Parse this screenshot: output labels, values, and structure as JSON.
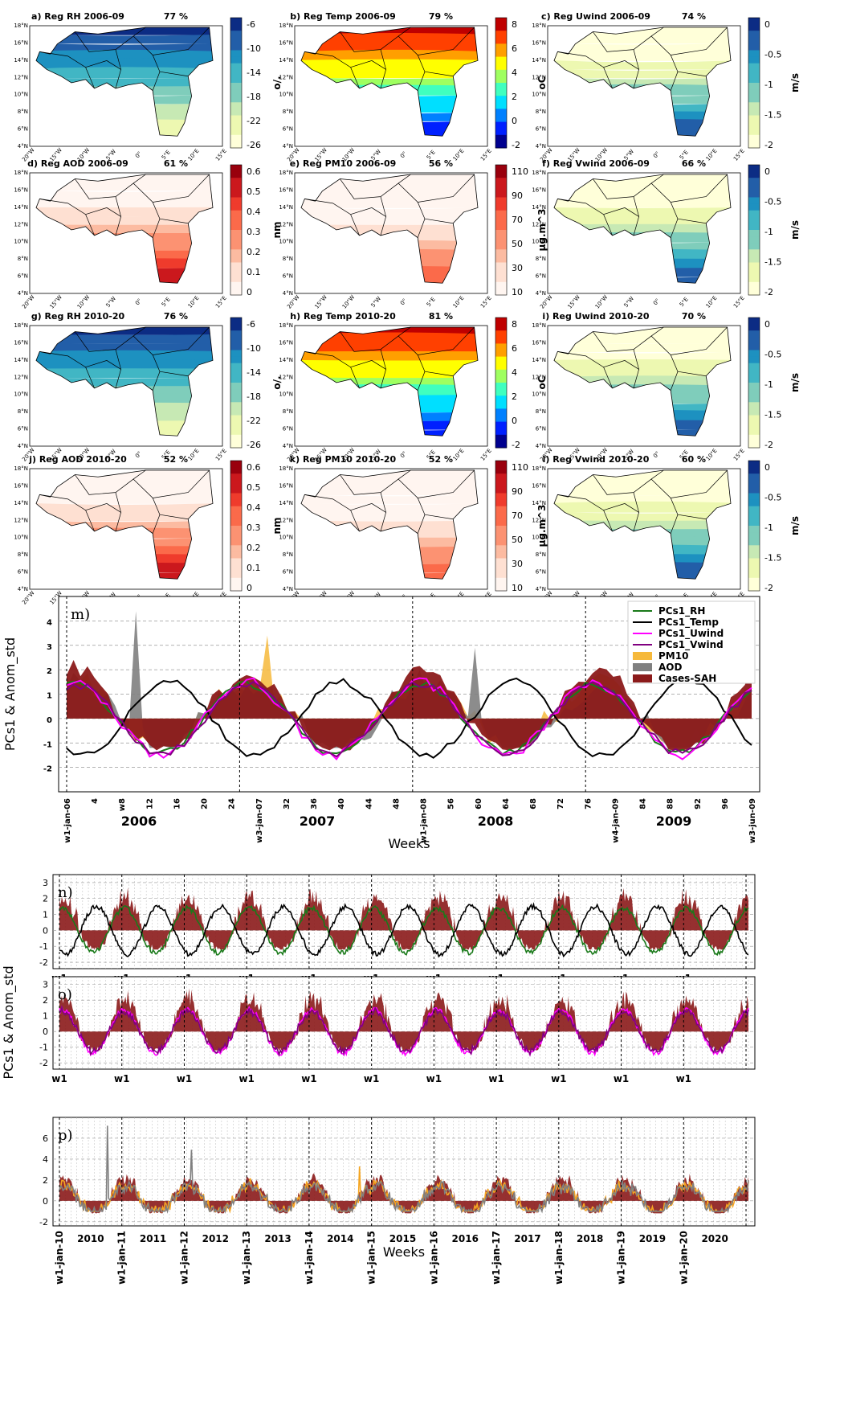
{
  "chart_data": [
    {
      "type": "heatmap",
      "maps": [
        {
          "id": "a",
          "title": "a) Reg RH 2006-09",
          "pct": "77 %",
          "unit": "o/.",
          "ticks": [
            "-6",
            "-10",
            "-14",
            "-18",
            "-22",
            "-26"
          ],
          "palette": "ylgnbu",
          "mode": "north"
        },
        {
          "id": "b",
          "title": "b) Reg Temp 2006-09",
          "pct": "79 %",
          "unit": "oC",
          "ticks": [
            "8",
            "6",
            "4",
            "2",
            "0",
            "-2"
          ],
          "palette": "jet",
          "mode": "north"
        },
        {
          "id": "c",
          "title": "c) Reg Uwind 2006-09",
          "pct": "74 %",
          "unit": "m/s",
          "ticks": [
            "0",
            "-0.5",
            "-1",
            "-1.5",
            "-2"
          ],
          "palette": "ylgnbu",
          "mode": "south"
        },
        {
          "id": "d",
          "title": "d) Reg AOD 2006-09",
          "pct": "61 %",
          "unit": "nm",
          "ticks": [
            "0.6",
            "0.5",
            "0.4",
            "0.3",
            "0.2",
            "0.1",
            "0"
          ],
          "palette": "reds",
          "mode": "south"
        },
        {
          "id": "e",
          "title": "e) Reg PM10 2006-09",
          "pct": "56 %",
          "unit": "µg.m^3",
          "ticks": [
            "110",
            "90",
            "70",
            "50",
            "30",
            "10"
          ],
          "palette": "reds",
          "mode": "southlight"
        },
        {
          "id": "f",
          "title": "f) Reg Vwind 2006-09",
          "pct": "66 %",
          "unit": "m/s",
          "ticks": [
            "0",
            "-0.5",
            "-1",
            "-1.5",
            "-2"
          ],
          "palette": "ylgnbu",
          "mode": "south"
        },
        {
          "id": "g",
          "title": "g) Reg RH 2010-20",
          "pct": "76 %",
          "unit": "o/.",
          "ticks": [
            "-6",
            "-10",
            "-14",
            "-18",
            "-22",
            "-26"
          ],
          "palette": "ylgnbu",
          "mode": "north"
        },
        {
          "id": "h",
          "title": "h) Reg Temp 2010-20",
          "pct": "81 %",
          "unit": "oC",
          "ticks": [
            "8",
            "6",
            "4",
            "2",
            "0",
            "-2"
          ],
          "palette": "jet",
          "mode": "north"
        },
        {
          "id": "i",
          "title": "i) Reg Uwind 2010-20",
          "pct": "70 %",
          "unit": "m/s",
          "ticks": [
            "0",
            "-0.5",
            "-1",
            "-1.5",
            "-2"
          ],
          "palette": "ylgnbu",
          "mode": "south"
        },
        {
          "id": "j",
          "title": "j) Reg AOD 2010-20",
          "pct": "52 %",
          "unit": "nm",
          "ticks": [
            "0.6",
            "0.5",
            "0.4",
            "0.3",
            "0.2",
            "0.1",
            "0"
          ],
          "palette": "reds",
          "mode": "south"
        },
        {
          "id": "k",
          "title": "k) Reg PM10 2010-20",
          "pct": "52 %",
          "unit": "µg.m^3",
          "ticks": [
            "110",
            "90",
            "70",
            "50",
            "30",
            "10"
          ],
          "palette": "reds",
          "mode": "southlight"
        },
        {
          "id": "l",
          "title": "l) Reg Vwind 2010-20",
          "pct": "60 %",
          "unit": "m/s",
          "ticks": [
            "0",
            "-0.5",
            "-1",
            "-1.5",
            "-2"
          ],
          "palette": "ylgnbu",
          "mode": "south"
        }
      ],
      "lat_ticks": [
        "18°N",
        "16°N",
        "14°N",
        "12°N",
        "10°N",
        "8°N",
        "6°N",
        "4°N"
      ],
      "lon_ticks": [
        "20°W",
        "15°W",
        "10°W",
        "5°W",
        "0°",
        "5°E",
        "10°E",
        "15°E"
      ]
    },
    {
      "type": "line",
      "label": "m)",
      "ylabel": "PCs1 & Anom_std",
      "xlabel": "Weeks",
      "ylim": [
        -3,
        5
      ],
      "yticks": [
        "4",
        "3",
        "2",
        "1",
        "0",
        "-1",
        "-2"
      ],
      "xticks": [
        "w1-jan-06",
        "4",
        "w8",
        "12",
        "16",
        "20",
        "24",
        "w3-jan-07",
        "32",
        "36",
        "40",
        "44",
        "48",
        "w1-jan-08",
        "56",
        "60",
        "64",
        "68",
        "72",
        "76",
        "w4-jan-09",
        "84",
        "88",
        "92",
        "96",
        "w3-jun-09"
      ],
      "years": [
        "2006",
        "2007",
        "2008",
        "2009"
      ],
      "legend": [
        "PCs1_RH",
        "PCs1_Temp",
        "PCs1_Uwind",
        "PCs1_Vwind",
        "PM10",
        "AOD",
        "Cases-SAH"
      ],
      "colors": {
        "rh": "#1a7a1a",
        "temp": "#000000",
        "uwind": "#ff00ff",
        "vwind": "#800080",
        "pm10": "#f6b93b",
        "aod": "#808080",
        "sah": "#8b1a1a"
      }
    },
    {
      "type": "line",
      "panels": [
        "n)",
        "o)",
        "p)"
      ],
      "ylabel": "PCs1 & Anom_std",
      "xlabel": "Weeks",
      "w1label": "w1",
      "yticks_np": [
        "3",
        "2",
        "1",
        "0",
        "-1",
        "-2"
      ],
      "yticks_p": [
        "6",
        "4",
        "2",
        "0",
        "-2"
      ],
      "jan_labels": [
        "w1-jan-10",
        "w1-jan-11",
        "w1-jan-12",
        "w1-jan-13",
        "w1-jan-14",
        "w1-jan-15",
        "w1-jan-16",
        "w1-jan-17",
        "w1-jan-18",
        "w1-jan-19",
        "w1-jan-20"
      ],
      "years": [
        "2010",
        "2011",
        "2012",
        "2013",
        "2014",
        "2015",
        "2016",
        "2017",
        "2018",
        "2019",
        "2020"
      ]
    }
  ]
}
